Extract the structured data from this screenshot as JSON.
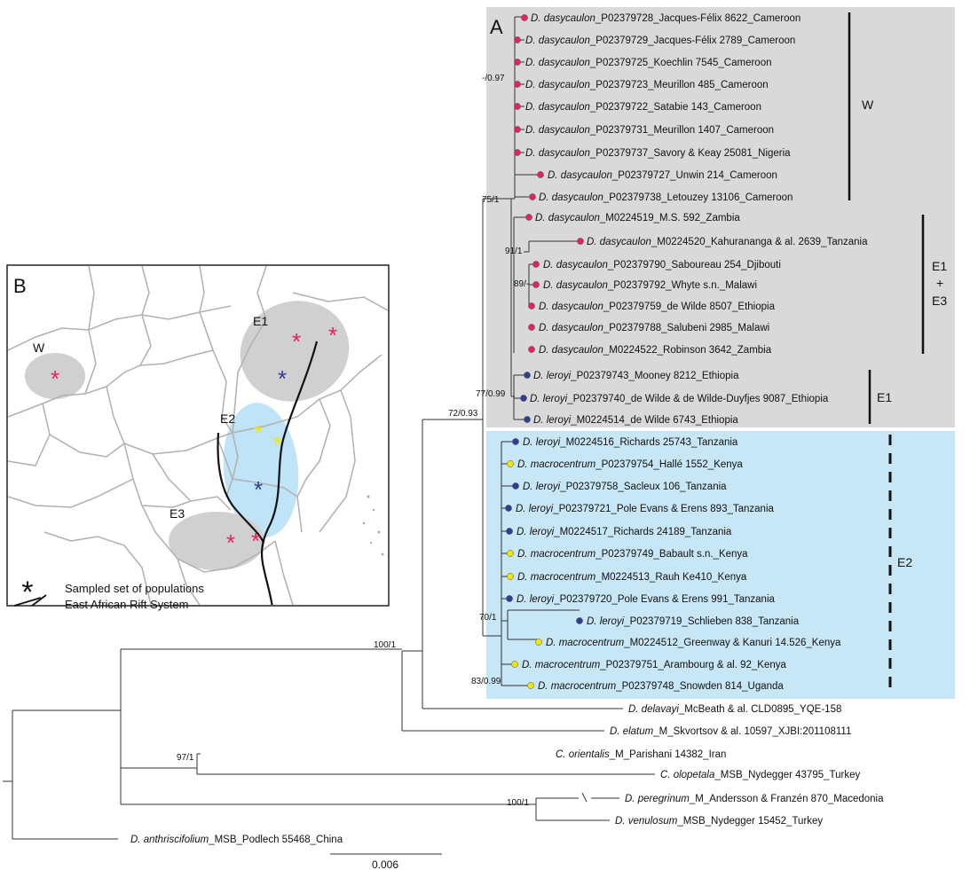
{
  "panel_a_label": "A",
  "panel_b_label": "B",
  "colors": {
    "red": "#e0245e",
    "blue": "#2e3f92",
    "yellow": "#f2e600",
    "grey_box": "#d9d9d9",
    "blue_box": "#c7e6f6",
    "map_grey": "#cccccc",
    "map_blue": "#bfe4f8"
  },
  "tips": [
    {
      "sp": "D. dasycaulon",
      "rest": "_P02379728_Jacques-Félix 8622_Cameroon",
      "dot": "red"
    },
    {
      "sp": "D. dasycaulon",
      "rest": "_P02379729_Jacques-Félix 2789_Cameroon",
      "dot": "red"
    },
    {
      "sp": "D. dasycaulon",
      "rest": "_P02379725_Koechlin 7545_Cameroon",
      "dot": "red"
    },
    {
      "sp": "D. dasycaulon",
      "rest": "_P02379723_Meurillon 485_Cameroon",
      "dot": "red"
    },
    {
      "sp": "D. dasycaulon",
      "rest": "_P02379722_Satabie 143_Cameroon",
      "dot": "red"
    },
    {
      "sp": "D. dasycaulon",
      "rest": "_P02379731_Meurillon 1407_Cameroon",
      "dot": "red"
    },
    {
      "sp": "D. dasycaulon",
      "rest": "_P02379737_Savory & Keay 25081_Nigeria",
      "dot": "red"
    },
    {
      "sp": "D. dasycaulon",
      "rest": "_P02379727_Unwin 214_Cameroon",
      "dot": "red"
    },
    {
      "sp": "D. dasycaulon",
      "rest": "_P02379738_Letouzey 13106_Cameroon",
      "dot": "red"
    },
    {
      "sp": "D. dasycaulon",
      "rest": "_M0224519_M.S. 592_Zambia",
      "dot": "red"
    },
    {
      "sp": "D. dasycaulon",
      "rest": "_M0224520_Kahurananga & al. 2639_Tanzania",
      "dot": "red"
    },
    {
      "sp": "D. dasycaulon",
      "rest": "_P02379790_Saboureau 254_Djibouti",
      "dot": "red"
    },
    {
      "sp": "D. dasycaulon",
      "rest": "_P02379792_Whyte s.n._Malawi",
      "dot": "red"
    },
    {
      "sp": "D. dasycaulon",
      "rest": "_P02379759_de Wilde 8507_Ethiopia",
      "dot": "red"
    },
    {
      "sp": "D. dasycaulon",
      "rest": "_P02379788_Salubeni 2985_Malawi",
      "dot": "red"
    },
    {
      "sp": "D. dasycaulon",
      "rest": "_M0224522_Robinson 3642_Zambia",
      "dot": "red"
    },
    {
      "sp": "D. leroyi",
      "rest": "_P02379743_Mooney 8212_Ethiopia",
      "dot": "blue"
    },
    {
      "sp": "D. leroyi",
      "rest": "_P02379740_de Wilde & de Wilde-Duyfjes 9087_Ethiopia",
      "dot": "blue"
    },
    {
      "sp": "D. leroyi",
      "rest": "_M0224514_de Wilde 6743_Ethiopia",
      "dot": "blue"
    },
    {
      "sp": "D. leroyi",
      "rest": "_M0224516_Richards 25743_Tanzania",
      "dot": "blue"
    },
    {
      "sp": "D. macrocentrum",
      "rest": "_P02379754_Hallé 1552_Kenya",
      "dot": "yellow"
    },
    {
      "sp": "D. leroyi",
      "rest": "_P02379758_Sacleux 106_Tanzania",
      "dot": "blue"
    },
    {
      "sp": "D. leroyi",
      "rest": "_P02379721_Pole Evans & Erens 893_Tanzania",
      "dot": "blue"
    },
    {
      "sp": "D. leroyi",
      "rest": "_M0224517_Richards 24189_Tanzania",
      "dot": "blue"
    },
    {
      "sp": "D. macrocentrum",
      "rest": "_P02379749_Babault s.n._Kenya",
      "dot": "yellow"
    },
    {
      "sp": "D. macrocentrum",
      "rest": "_M0224513_Rauh Ke410_Kenya",
      "dot": "yellow"
    },
    {
      "sp": "D. leroyi",
      "rest": "_P02379720_Pole Evans & Erens 991_Tanzania",
      "dot": "blue"
    },
    {
      "sp": "D. leroyi",
      "rest": "_P02379719_Schlieben 838_Tanzania",
      "dot": "blue"
    },
    {
      "sp": "D. macrocentrum",
      "rest": "_M0224512_Greenway & Kanuri 14.526_Kenya",
      "dot": "yellow"
    },
    {
      "sp": "D. macrocentrum",
      "rest": "_P02379751_Arambourg & al. 92_Kenya",
      "dot": "yellow"
    },
    {
      "sp": "D. macrocentrum",
      "rest": "_P02379748_Snowden 814_Uganda",
      "dot": "yellow"
    },
    {
      "sp": "D. delavayi",
      "rest": "_McBeath & al. CLD0895_YQE-158",
      "dot": ""
    },
    {
      "sp": "D. elatum",
      "rest": "_M_Skvortsov & al. 10597_XJBI:201108111",
      "dot": ""
    },
    {
      "sp": "C. orientalis",
      "rest": "_M_Parishani 14382_Iran",
      "dot": ""
    },
    {
      "sp": "C. olopetala",
      "rest": "_MSB_Nydegger 43795_Turkey",
      "dot": ""
    },
    {
      "sp": "D. peregrinum",
      "rest": "_M_Andersson & Franzén 870_Macedonia",
      "dot": ""
    },
    {
      "sp": "D. venulosum",
      "rest": "_MSB_Nydegger 15452_Turkey",
      "dot": ""
    },
    {
      "sp": "D. anthriscifolium",
      "rest": "_MSB_Podlech 55468_China",
      "dot": ""
    }
  ],
  "support": [
    "-/0.97",
    "75/1",
    "91/1",
    "89/-",
    "77/0.99",
    "72/0.93",
    "70/1",
    "83/0.99",
    "100/1",
    "97/1",
    "100/1"
  ],
  "clades": [
    "W",
    "E1",
    "+",
    "E3",
    "E1",
    "E2"
  ],
  "scale_label": "0.006",
  "map": {
    "region_labels": [
      "W",
      "E1",
      "E2",
      "E3"
    ],
    "legend": [
      "Sampled set of populations",
      "East African Rift System"
    ],
    "asterisks": [
      {
        "color": "red"
      },
      {
        "color": "red"
      },
      {
        "color": "red"
      },
      {
        "color": "blue"
      },
      {
        "color": "yellow"
      },
      {
        "color": "yellow"
      },
      {
        "color": "blue"
      },
      {
        "color": "red"
      },
      {
        "color": "red"
      },
      {
        "color": "black"
      }
    ]
  }
}
